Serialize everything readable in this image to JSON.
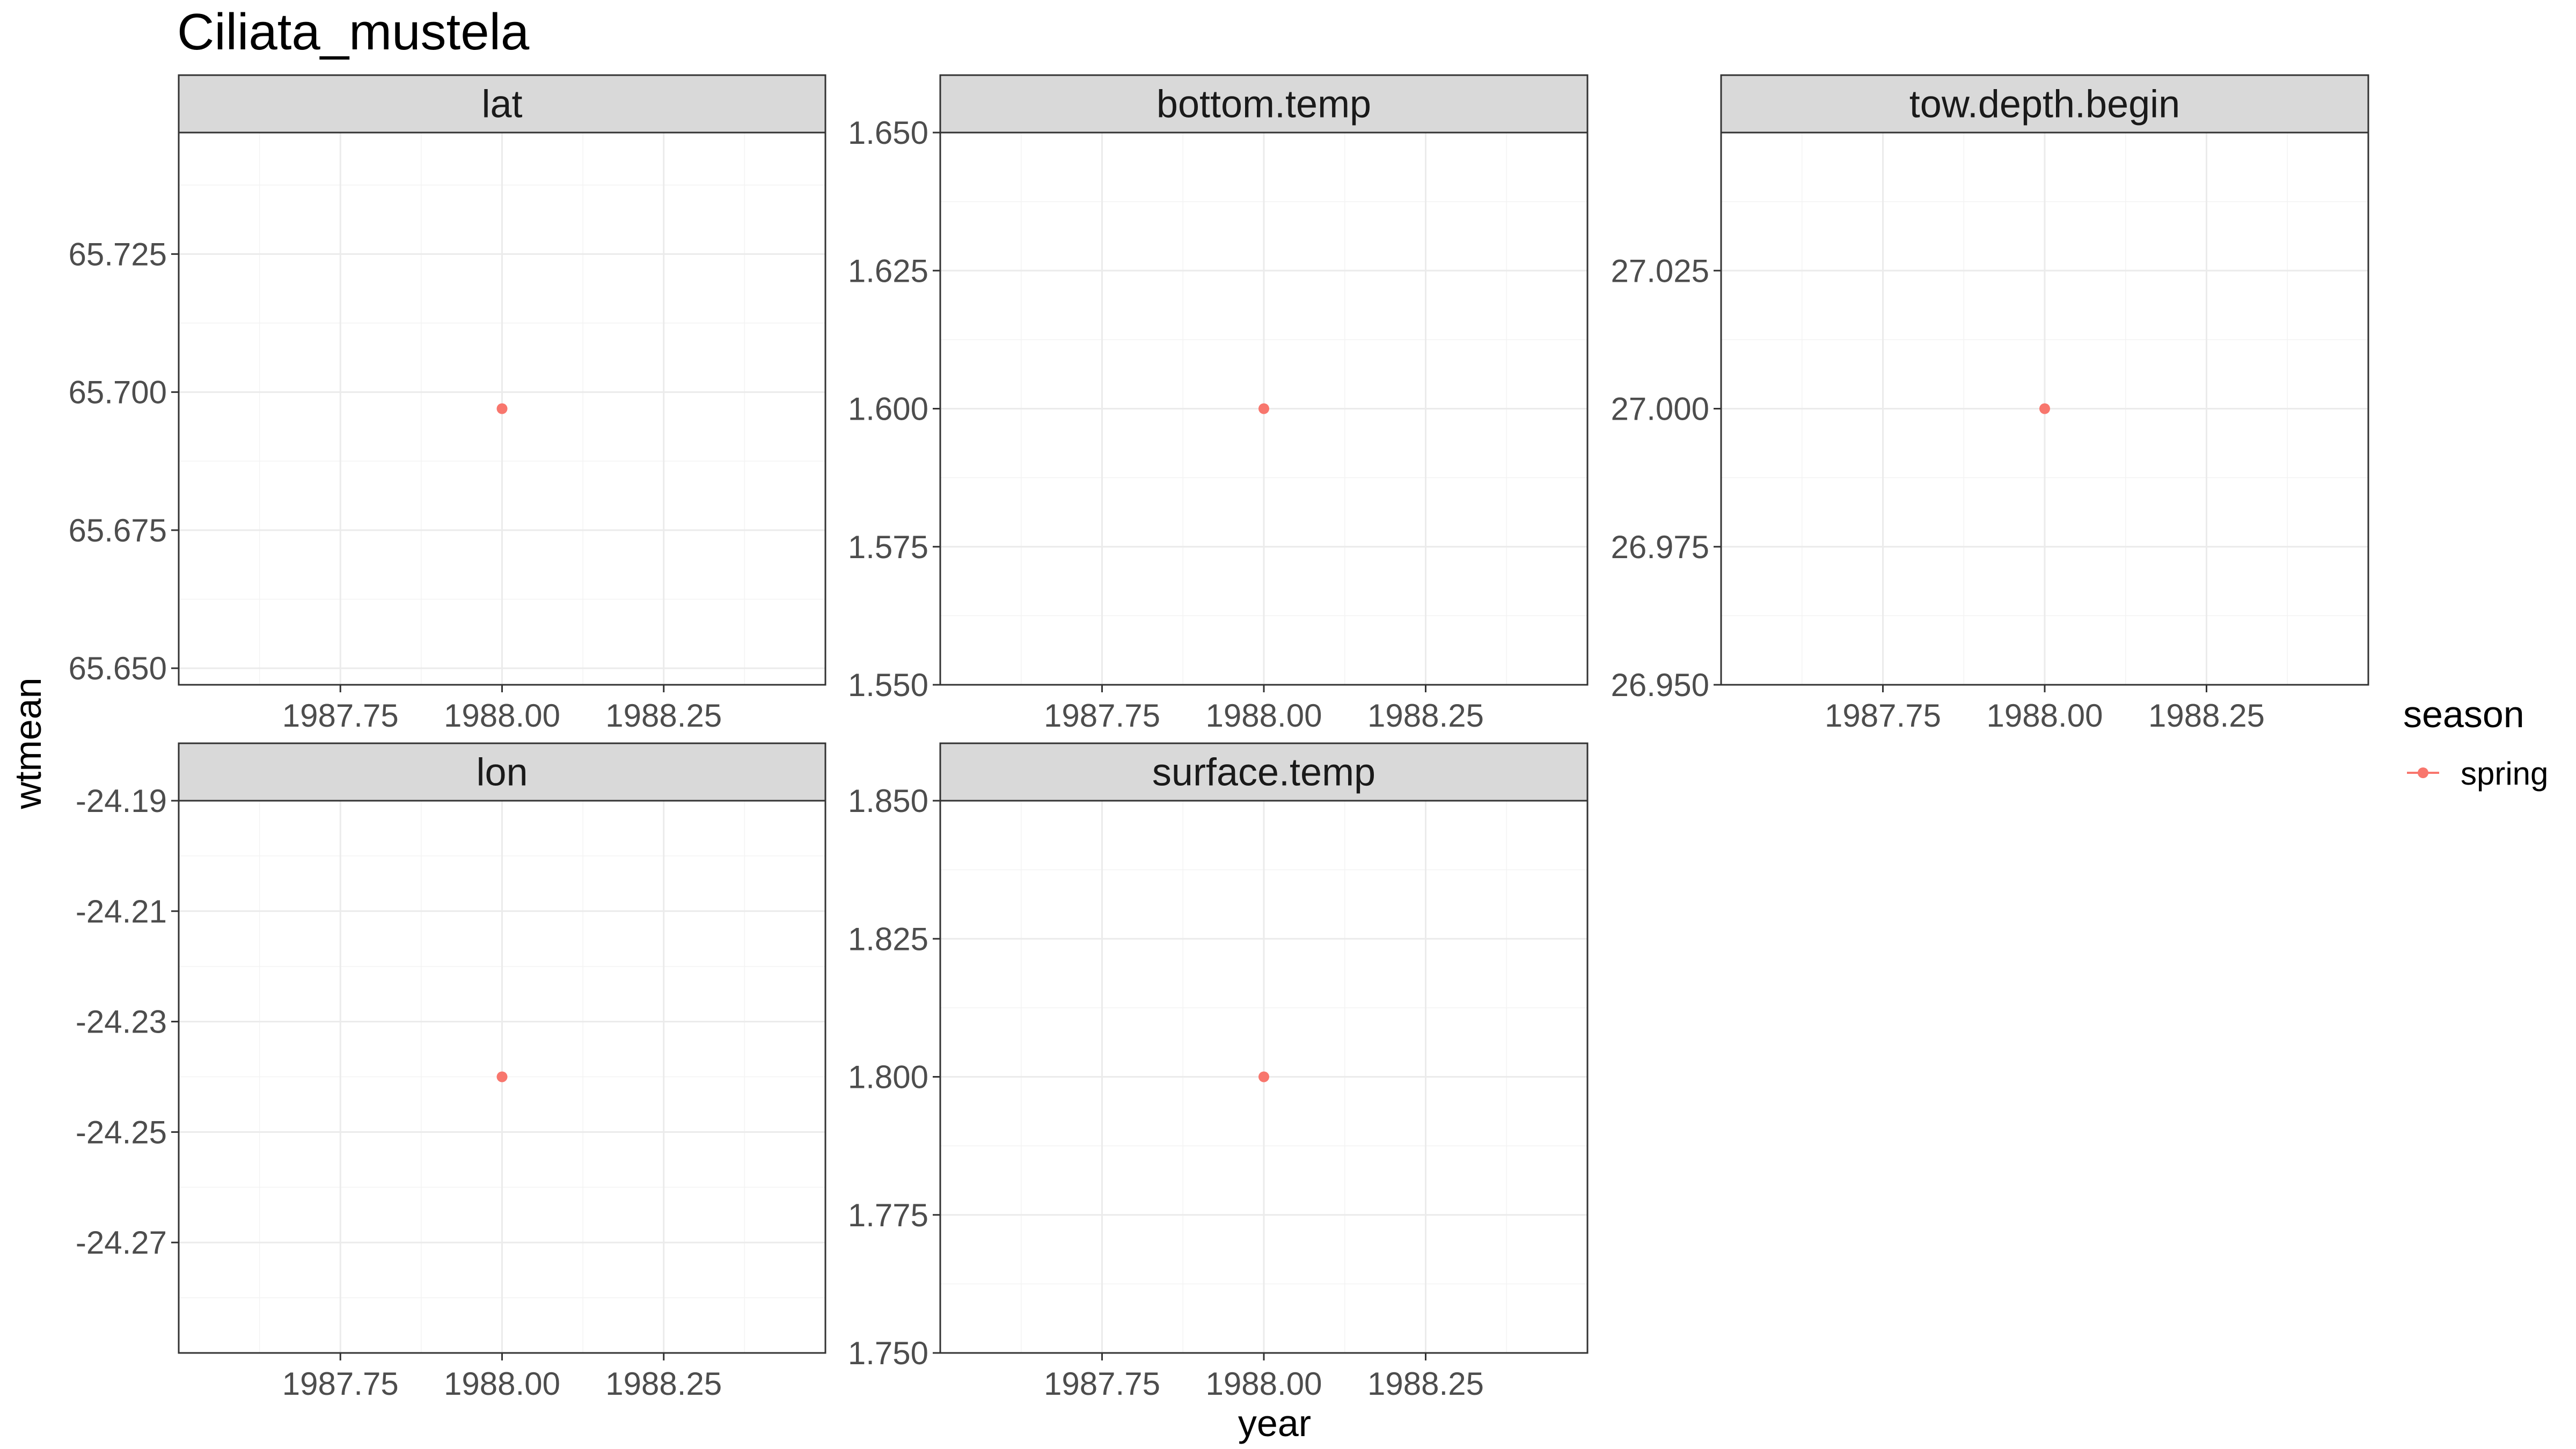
{
  "chart_data": {
    "type": "scatter",
    "title": "Ciliata_mustela",
    "xlabel": "year",
    "ylabel": "wtmean",
    "legend": {
      "title": "season",
      "position": "right",
      "entries": [
        {
          "name": "spring",
          "color": "#F8766D"
        }
      ]
    },
    "series_color": "#F8766D",
    "grid": true,
    "x_ticks": [
      "1987.75",
      "1988.00",
      "1988.25"
    ],
    "x_tick_values": [
      1987.75,
      1988.0,
      1988.25
    ],
    "xlim": [
      1987.5,
      1988.5
    ],
    "panels": [
      {
        "name": "lat",
        "ylim": [
          65.647,
          65.747
        ],
        "y_ticks": [
          "65.650",
          "65.675",
          "65.700",
          "65.725"
        ],
        "y_tick_values": [
          65.65,
          65.675,
          65.7,
          65.725
        ],
        "points": [
          {
            "x": 1988.0,
            "y": 65.697,
            "season": "spring"
          }
        ],
        "show_x_ticks": true
      },
      {
        "name": "bottom.temp",
        "ylim": [
          1.55,
          1.65
        ],
        "y_ticks": [
          "1.550",
          "1.575",
          "1.600",
          "1.625",
          "1.650"
        ],
        "y_tick_values": [
          1.55,
          1.575,
          1.6,
          1.625,
          1.65
        ],
        "points": [
          {
            "x": 1988.0,
            "y": 1.6,
            "season": "spring"
          }
        ],
        "show_x_ticks": true
      },
      {
        "name": "tow.depth.begin",
        "ylim": [
          26.95,
          27.05
        ],
        "y_ticks": [
          "26.950",
          "26.975",
          "27.000",
          "27.025"
        ],
        "y_tick_values": [
          26.95,
          26.975,
          27.0,
          27.025
        ],
        "points": [
          {
            "x": 1988.0,
            "y": 27.0,
            "season": "spring"
          }
        ],
        "show_x_ticks": true
      },
      {
        "name": "lon",
        "ylim": [
          -24.29,
          -24.19
        ],
        "y_ticks": [
          "-24.19",
          "-24.21",
          "-24.23",
          "-24.25",
          "-24.27"
        ],
        "y_tick_values": [
          -24.19,
          -24.21,
          -24.23,
          -24.25,
          -24.27
        ],
        "points": [
          {
            "x": 1988.0,
            "y": -24.24,
            "season": "spring"
          }
        ],
        "show_x_ticks": true
      },
      {
        "name": "surface.temp",
        "ylim": [
          1.75,
          1.85
        ],
        "y_ticks": [
          "1.750",
          "1.775",
          "1.800",
          "1.825",
          "1.850"
        ],
        "y_tick_values": [
          1.75,
          1.775,
          1.8,
          1.825,
          1.85
        ],
        "points": [
          {
            "x": 1988.0,
            "y": 1.8,
            "season": "spring"
          }
        ],
        "show_x_ticks": true
      }
    ]
  }
}
